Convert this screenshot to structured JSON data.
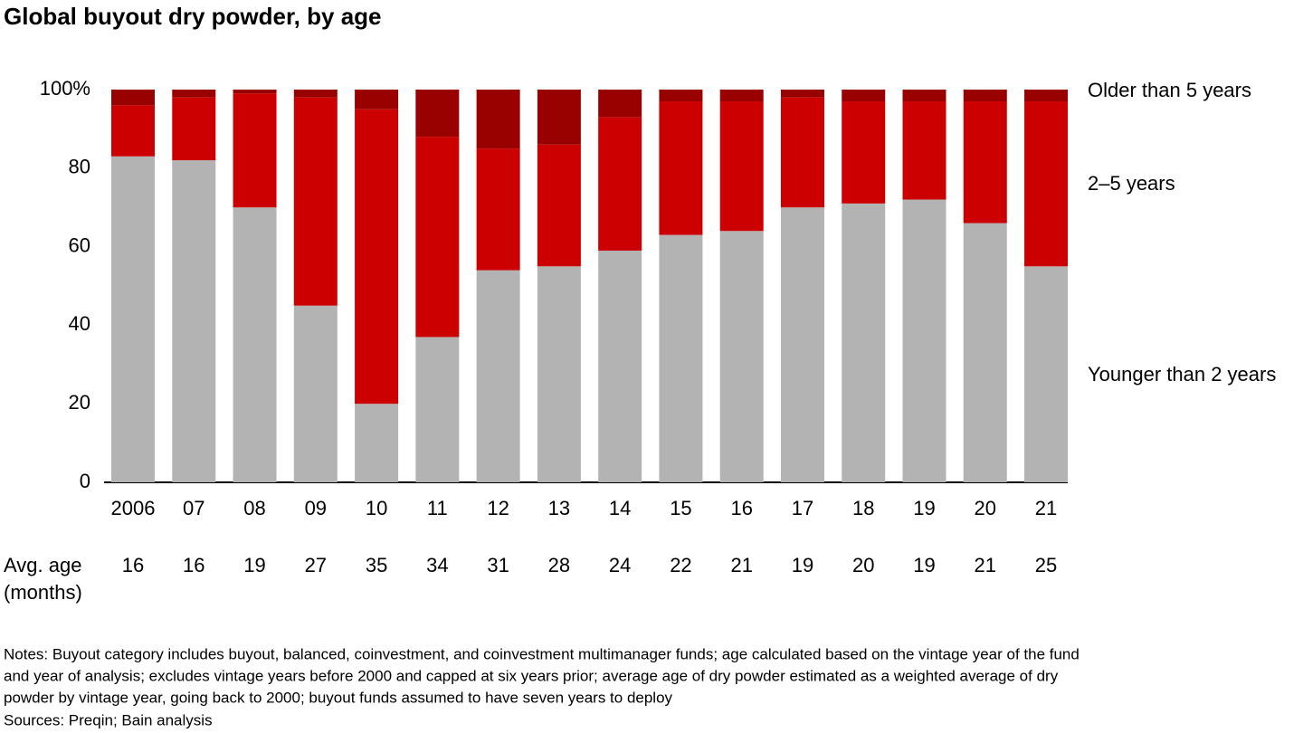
{
  "chart_data": {
    "type": "stacked_bar",
    "title": "Global buyout dry powder, by age",
    "categories": [
      "2006",
      "07",
      "08",
      "09",
      "10",
      "11",
      "12",
      "13",
      "14",
      "15",
      "16",
      "17",
      "18",
      "19",
      "20",
      "21"
    ],
    "series": [
      {
        "name": "Younger than 2 years",
        "color": "#b3b3b3",
        "values": [
          83,
          82,
          70,
          45,
          20,
          37,
          54,
          55,
          59,
          63,
          64,
          70,
          71,
          72,
          66,
          55
        ]
      },
      {
        "name": "2–5 years",
        "color": "#cc0000",
        "values": [
          13,
          16,
          29,
          53,
          75,
          51,
          31,
          31,
          34,
          34,
          33,
          28,
          26,
          25,
          31,
          42
        ]
      },
      {
        "name": "Older than 5 years",
        "color": "#990000",
        "values": [
          4,
          2,
          1,
          2,
          5,
          12,
          15,
          14,
          7,
          3,
          3,
          2,
          3,
          3,
          3,
          3
        ]
      }
    ],
    "ylim": [
      0,
      100
    ],
    "yticks": [
      0,
      20,
      40,
      60,
      80,
      {
        "value": 100,
        "label": "100%"
      }
    ],
    "grid": false,
    "avg_age": {
      "label": [
        "Avg. age",
        "(months)"
      ],
      "values": [
        16,
        16,
        19,
        27,
        35,
        34,
        31,
        28,
        24,
        22,
        21,
        19,
        20,
        19,
        21,
        25
      ]
    },
    "notes": [
      "Notes: Buyout category includes buyout, balanced, coinvestment, and coinvestment multimanager funds; age calculated based on the vintage year of the fund",
      "and year of analysis; excludes vintage years before 2000 and capped at six years prior; average age of dry powder estimated as a weighted average of dry",
      "powder by vintage year, going back to 2000; buyout funds assumed to have seven years to deploy"
    ],
    "source": "Sources: Preqin; Bain analysis"
  }
}
